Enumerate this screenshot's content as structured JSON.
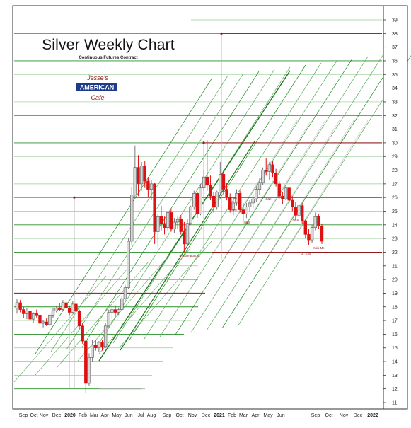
{
  "chart_data": {
    "type": "candlestick",
    "title": "Silver Weekly Chart",
    "subtitle": "Continuous Futures Contract",
    "logo": {
      "top": "Jesse's",
      "middle": "AMERICAN",
      "bottom": "Cafe"
    },
    "y_axis": {
      "side": "right",
      "min": 11,
      "max": 39,
      "ticks": [
        11,
        12,
        13,
        14,
        15,
        16,
        17,
        18,
        19,
        20,
        21,
        22,
        23,
        24,
        25,
        26,
        27,
        28,
        29,
        30,
        31,
        32,
        33,
        34,
        35,
        36,
        37,
        38,
        39
      ]
    },
    "x_axis": {
      "labels": [
        "Sep",
        "Oct",
        "Nov",
        "Dec",
        "2020",
        "Feb",
        "Mar",
        "Apr",
        "May",
        "Jun",
        "Jul",
        "Aug",
        "Sep",
        "Oct",
        "Nov",
        "Dec",
        "2021",
        "Feb",
        "Mar",
        "Apr",
        "May",
        "Jun",
        "Sep",
        "Oct",
        "Nov",
        "Dec",
        "2022"
      ],
      "bold_labels": [
        "2020",
        "2021",
        "2022"
      ]
    },
    "annotations": [
      "Double Bottom",
      "Dr. Evil",
      "Mini Me",
      "C&H",
      "C&H",
      "H&S",
      "C&H",
      "H&S"
    ],
    "resistance_lines": [
      38,
      30,
      26,
      19,
      22
    ],
    "colors": {
      "up": "#d8d8d8",
      "down": "#dd1111",
      "channel": "#1e8a1e",
      "channel_light": "#cfcfcf",
      "resistance": "#8b0000",
      "grid_green": "#1e8a1e"
    },
    "candles": [
      [
        17.9,
        18.6,
        17.5,
        18.3
      ],
      [
        18.3,
        18.5,
        17.6,
        17.8
      ],
      [
        17.8,
        18.0,
        17.2,
        17.5
      ],
      [
        17.5,
        17.9,
        17.1,
        17.7
      ],
      [
        17.7,
        17.8,
        16.9,
        17.1
      ],
      [
        17.1,
        17.6,
        16.8,
        17.5
      ],
      [
        17.5,
        17.8,
        17.2,
        17.4
      ],
      [
        17.4,
        17.6,
        16.6,
        16.8
      ],
      [
        16.8,
        17.0,
        16.5,
        16.9
      ],
      [
        16.9,
        17.2,
        16.6,
        16.7
      ],
      [
        16.7,
        17.5,
        16.6,
        17.4
      ],
      [
        17.4,
        17.9,
        17.2,
        17.7
      ],
      [
        17.7,
        18.1,
        17.6,
        17.9
      ],
      [
        17.9,
        18.3,
        17.7,
        17.8
      ],
      [
        17.8,
        18.5,
        17.7,
        18.3
      ],
      [
        18.3,
        18.6,
        17.8,
        17.9
      ],
      [
        17.9,
        18.1,
        17.4,
        17.6
      ],
      [
        17.6,
        18.4,
        17.5,
        18.2
      ],
      [
        18.2,
        18.6,
        17.6,
        17.7
      ],
      [
        17.7,
        17.8,
        16.4,
        16.6
      ],
      [
        16.6,
        16.8,
        15.3,
        15.5
      ],
      [
        15.5,
        15.6,
        11.7,
        12.4
      ],
      [
        12.4,
        14.6,
        12.2,
        14.3
      ],
      [
        14.3,
        15.6,
        14.0,
        15.2
      ],
      [
        15.2,
        15.6,
        14.8,
        15.0
      ],
      [
        15.0,
        15.5,
        14.7,
        15.4
      ],
      [
        15.4,
        15.6,
        14.8,
        15.1
      ],
      [
        15.1,
        16.8,
        15.0,
        16.6
      ],
      [
        16.6,
        17.8,
        16.5,
        17.6
      ],
      [
        17.6,
        18.0,
        17.1,
        17.8
      ],
      [
        17.8,
        18.1,
        17.3,
        17.6
      ],
      [
        17.6,
        17.9,
        17.4,
        17.8
      ],
      [
        17.8,
        18.8,
        17.7,
        18.6
      ],
      [
        18.6,
        19.6,
        18.4,
        19.4
      ],
      [
        19.4,
        23.0,
        19.3,
        22.8
      ],
      [
        22.8,
        26.8,
        22.5,
        26.2
      ],
      [
        26.2,
        29.8,
        25.9,
        28.2
      ],
      [
        28.2,
        29.1,
        26.1,
        27.0
      ],
      [
        27.0,
        28.6,
        26.5,
        28.3
      ],
      [
        28.3,
        28.7,
        26.7,
        27.2
      ],
      [
        27.2,
        27.5,
        26.0,
        26.6
      ],
      [
        26.6,
        27.3,
        25.8,
        27.0
      ],
      [
        27.0,
        27.1,
        22.6,
        23.5
      ],
      [
        23.5,
        24.8,
        22.4,
        24.6
      ],
      [
        24.6,
        25.4,
        23.6,
        24.1
      ],
      [
        24.1,
        24.6,
        23.3,
        23.8
      ],
      [
        23.8,
        25.0,
        23.6,
        24.9
      ],
      [
        24.9,
        25.2,
        23.5,
        23.7
      ],
      [
        23.7,
        24.5,
        23.4,
        24.2
      ],
      [
        24.2,
        24.6,
        23.7,
        24.4
      ],
      [
        24.4,
        24.7,
        23.3,
        23.5
      ],
      [
        23.5,
        24.2,
        22.0,
        22.6
      ],
      [
        22.6,
        24.4,
        22.5,
        24.1
      ],
      [
        24.1,
        25.4,
        24.0,
        25.3
      ],
      [
        25.3,
        26.5,
        25.1,
        26.3
      ],
      [
        26.3,
        26.4,
        24.5,
        24.8
      ],
      [
        24.8,
        27.0,
        24.7,
        26.7
      ],
      [
        26.7,
        28.0,
        26.5,
        27.5
      ],
      [
        27.5,
        30.2,
        26.5,
        26.9
      ],
      [
        26.9,
        27.6,
        25.8,
        26.1
      ],
      [
        26.1,
        26.4,
        24.9,
        25.3
      ],
      [
        25.3,
        26.5,
        25.1,
        26.4
      ],
      [
        26.4,
        28.6,
        26.2,
        27.7
      ],
      [
        27.7,
        28.0,
        26.3,
        26.6
      ],
      [
        26.6,
        27.1,
        25.8,
        26.0
      ],
      [
        26.0,
        26.3,
        24.9,
        25.1
      ],
      [
        25.1,
        26.0,
        24.7,
        25.6
      ],
      [
        25.6,
        26.6,
        25.4,
        26.3
      ],
      [
        26.3,
        26.5,
        24.9,
        25.1
      ],
      [
        25.1,
        25.6,
        24.3,
        24.8
      ],
      [
        24.8,
        25.6,
        24.5,
        25.3
      ],
      [
        25.3,
        25.8,
        25.0,
        25.6
      ],
      [
        25.6,
        26.2,
        25.2,
        25.9
      ],
      [
        25.9,
        26.8,
        25.7,
        26.6
      ],
      [
        26.6,
        27.4,
        26.2,
        27.1
      ],
      [
        27.1,
        28.2,
        26.9,
        28.0
      ],
      [
        28.0,
        28.9,
        27.6,
        27.9
      ],
      [
        27.9,
        28.6,
        27.3,
        28.4
      ],
      [
        28.4,
        28.7,
        27.5,
        27.8
      ],
      [
        27.8,
        28.1,
        26.8,
        27.0
      ],
      [
        27.0,
        27.2,
        25.9,
        26.1
      ],
      [
        26.1,
        26.4,
        25.5,
        25.9
      ],
      [
        25.9,
        26.9,
        25.8,
        26.7
      ],
      [
        26.7,
        26.8,
        25.6,
        25.8
      ],
      [
        25.8,
        26.1,
        25.0,
        25.3
      ],
      [
        25.3,
        25.7,
        24.4,
        24.7
      ],
      [
        24.7,
        25.5,
        24.5,
        25.4
      ],
      [
        25.4,
        25.6,
        24.1,
        24.3
      ],
      [
        24.3,
        24.4,
        23.0,
        23.3
      ],
      [
        23.3,
        23.7,
        22.5,
        22.9
      ],
      [
        22.9,
        24.0,
        22.7,
        23.8
      ],
      [
        23.8,
        24.9,
        23.6,
        24.6
      ],
      [
        24.6,
        24.8,
        23.7,
        23.9
      ],
      [
        23.9,
        24.1,
        22.6,
        22.8
      ]
    ]
  }
}
